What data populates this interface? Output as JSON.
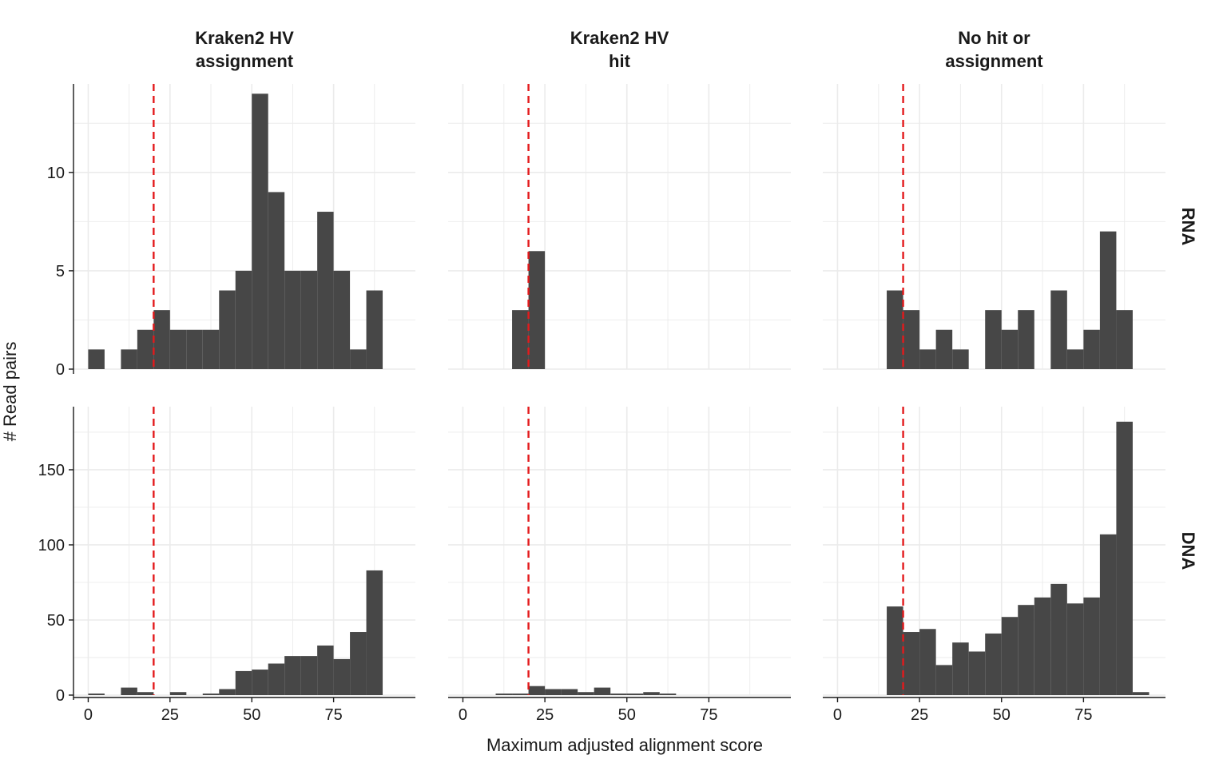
{
  "chart_data": {
    "type": "bar",
    "xlabel": "Maximum adjusted alignment score",
    "ylabel": "# Read pairs",
    "columns": [
      {
        "key": "assignment",
        "label_lines": [
          "Kraken2 HV",
          "assignment"
        ]
      },
      {
        "key": "hit",
        "label_lines": [
          "Kraken2 HV",
          "hit"
        ]
      },
      {
        "key": "none",
        "label_lines": [
          "No hit or",
          "assignment"
        ]
      }
    ],
    "rows": [
      {
        "key": "RNA",
        "label": "RNA",
        "ylim": [
          0,
          14.5
        ],
        "yticks": [
          0,
          5,
          10
        ]
      },
      {
        "key": "DNA",
        "label": "DNA",
        "ylim": [
          0,
          192
        ],
        "yticks": [
          0,
          50,
          100,
          150
        ]
      }
    ],
    "xlim": [
      -4.5,
      100
    ],
    "xticks": [
      0,
      25,
      50,
      75
    ],
    "bin_width": 5,
    "threshold": 20,
    "colors": {
      "bar": "#474747",
      "threshold": "#e31a1c",
      "grid": "#ebebeb",
      "axis": "#1a1a1a"
    },
    "panels": [
      {
        "row": "RNA",
        "col": "assignment",
        "bins": [
          [
            0,
            1
          ],
          [
            10,
            1
          ],
          [
            15,
            2
          ],
          [
            20,
            3
          ],
          [
            25,
            2
          ],
          [
            30,
            2
          ],
          [
            35,
            2
          ],
          [
            40,
            4
          ],
          [
            45,
            5
          ],
          [
            50,
            14
          ],
          [
            55,
            9
          ],
          [
            60,
            5
          ],
          [
            65,
            5
          ],
          [
            70,
            8
          ],
          [
            75,
            5
          ],
          [
            80,
            1
          ],
          [
            85,
            4
          ]
        ]
      },
      {
        "row": "RNA",
        "col": "hit",
        "bins": [
          [
            15,
            3
          ],
          [
            20,
            6
          ]
        ]
      },
      {
        "row": "RNA",
        "col": "none",
        "bins": [
          [
            15,
            4
          ],
          [
            20,
            3
          ],
          [
            25,
            1
          ],
          [
            30,
            2
          ],
          [
            35,
            1
          ],
          [
            45,
            3
          ],
          [
            50,
            2
          ],
          [
            55,
            3
          ],
          [
            65,
            4
          ],
          [
            70,
            1
          ],
          [
            75,
            2
          ],
          [
            80,
            7
          ],
          [
            85,
            3
          ]
        ]
      },
      {
        "row": "DNA",
        "col": "assignment",
        "bins": [
          [
            0,
            1
          ],
          [
            10,
            5
          ],
          [
            15,
            2
          ],
          [
            25,
            2
          ],
          [
            35,
            1
          ],
          [
            40,
            4
          ],
          [
            45,
            16
          ],
          [
            50,
            17
          ],
          [
            55,
            21
          ],
          [
            60,
            26
          ],
          [
            65,
            26
          ],
          [
            70,
            33
          ],
          [
            75,
            24
          ],
          [
            80,
            42
          ],
          [
            85,
            83
          ]
        ]
      },
      {
        "row": "DNA",
        "col": "hit",
        "bins": [
          [
            10,
            1
          ],
          [
            15,
            1
          ],
          [
            20,
            6
          ],
          [
            25,
            4
          ],
          [
            30,
            4
          ],
          [
            35,
            2
          ],
          [
            40,
            5
          ],
          [
            45,
            1
          ],
          [
            50,
            1
          ],
          [
            55,
            2
          ],
          [
            60,
            1
          ]
        ]
      },
      {
        "row": "DNA",
        "col": "none",
        "bins": [
          [
            15,
            59
          ],
          [
            20,
            42
          ],
          [
            25,
            44
          ],
          [
            30,
            20
          ],
          [
            35,
            35
          ],
          [
            40,
            29
          ],
          [
            45,
            41
          ],
          [
            50,
            52
          ],
          [
            55,
            60
          ],
          [
            60,
            65
          ],
          [
            65,
            74
          ],
          [
            70,
            61
          ],
          [
            75,
            65
          ],
          [
            80,
            107
          ],
          [
            85,
            182
          ],
          [
            90,
            2
          ]
        ]
      }
    ]
  }
}
